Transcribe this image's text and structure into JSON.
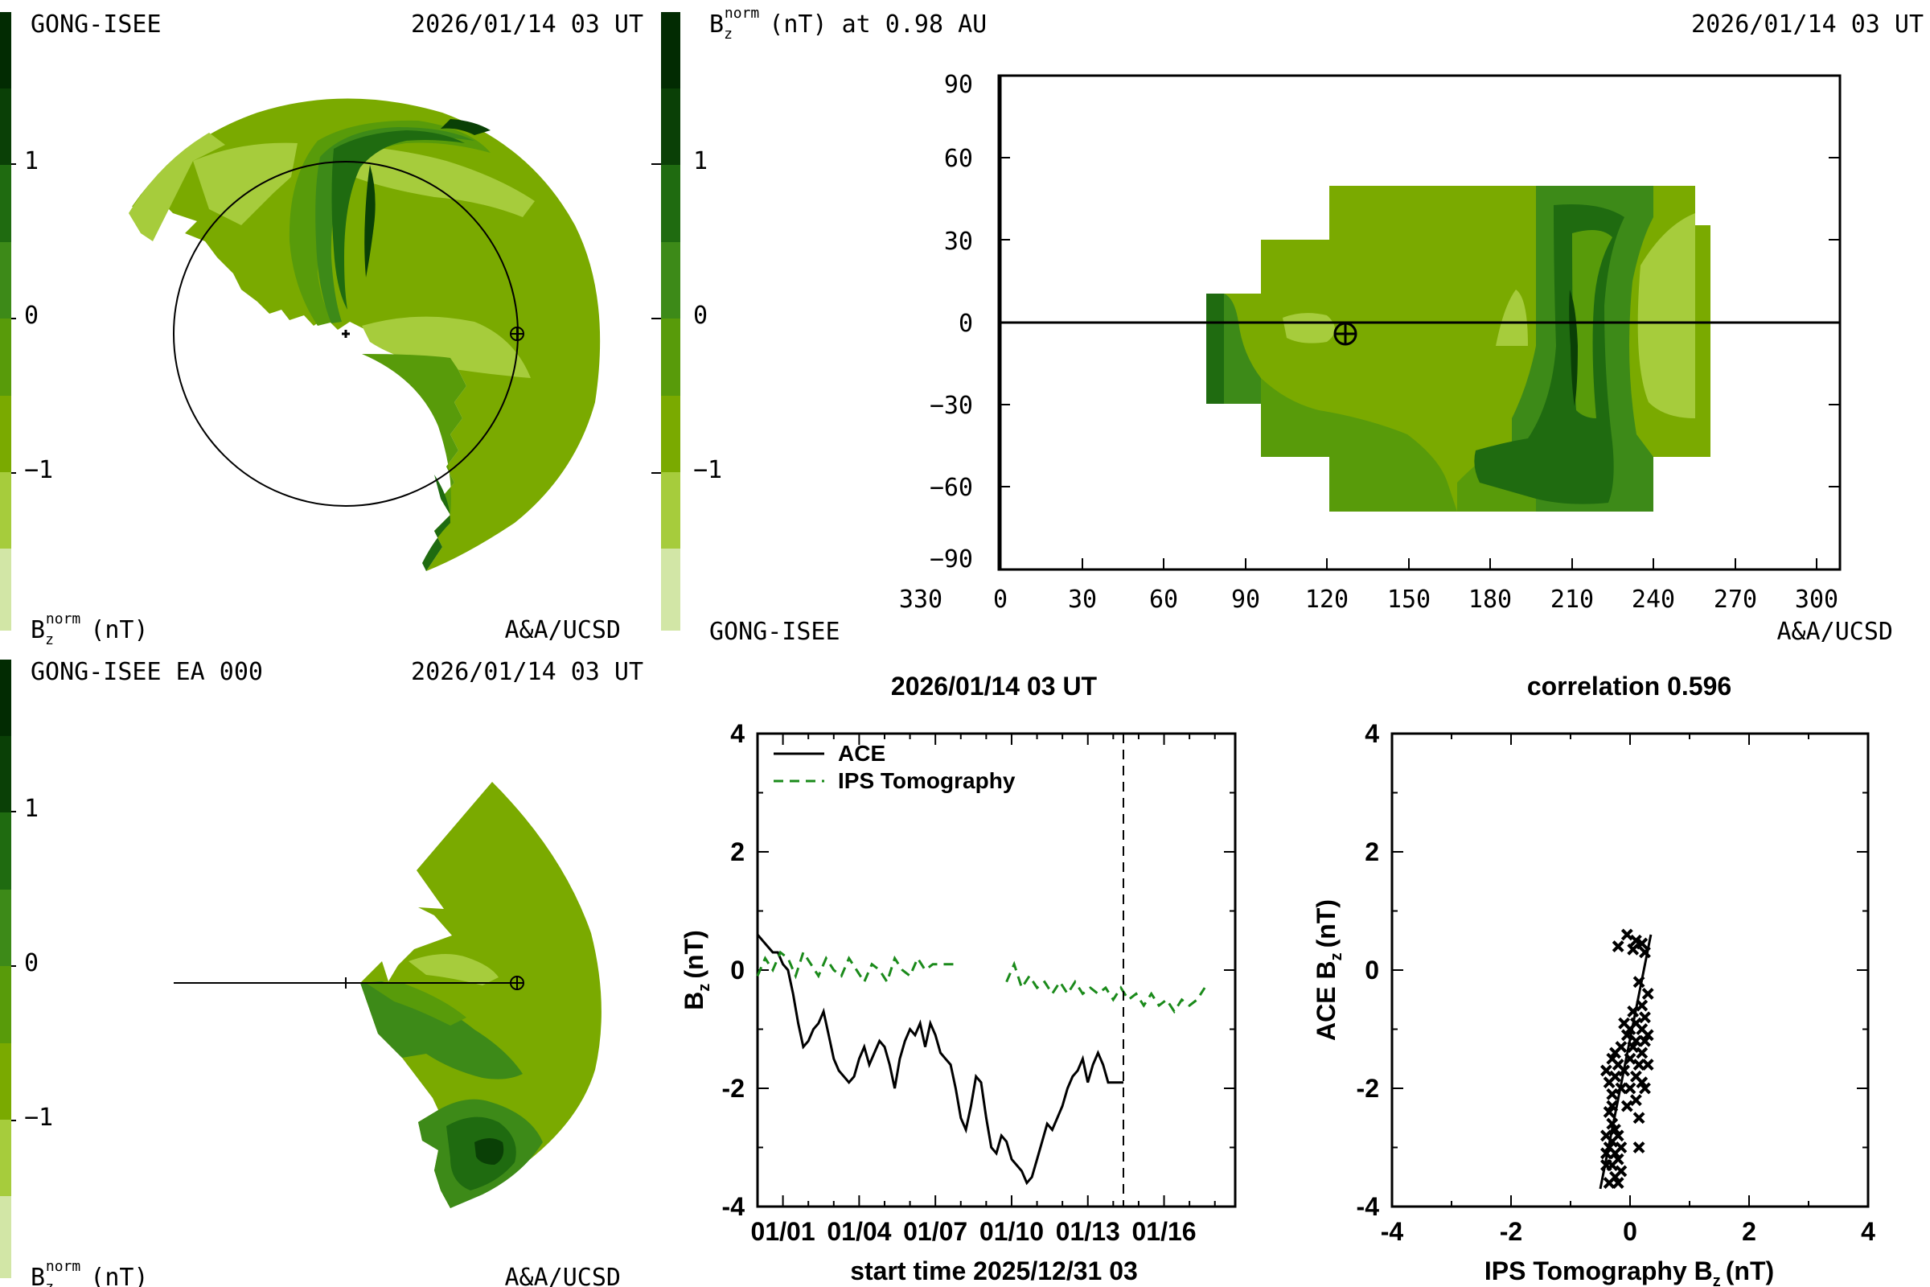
{
  "colors": {
    "c0": "#d2e6a6",
    "c1": "#a6cc3c",
    "c2": "#7aaa00",
    "c3": "#589b0a",
    "c4": "#3d8a18",
    "c5": "#1f6b10",
    "c6": "#0a4006",
    "c7": "#022b02",
    "ace_line": "#000000",
    "ips_line": "#1a8a1a"
  },
  "colorbar": {
    "ticks": [
      "1",
      "0",
      "−1"
    ],
    "label_main": "B",
    "label_sub": "z",
    "label_sup": "norm",
    "label_unit": "(nT)"
  },
  "panel_ecliptic": {
    "source": "GONG-ISEE",
    "timestamp": "2026/01/14 03 UT",
    "credit": "A&A/UCSD"
  },
  "panel_meridional": {
    "source": "GONG-ISEE EA 000",
    "timestamp": "2026/01/14 03 UT",
    "credit": "A&A/UCSD"
  },
  "panel_map": {
    "title_prefix": "B",
    "title_sub": "z",
    "title_sup": "norm",
    "title_rest": "(nT) at 0.98 AU",
    "timestamp": "2026/01/14 03 UT",
    "source": "GONG-ISEE",
    "credit": "A&A/UCSD",
    "x_ticks": [
      "330",
      "0",
      "30",
      "60",
      "90",
      "120",
      "150",
      "180",
      "210",
      "240",
      "270",
      "300"
    ],
    "y_ticks": [
      "90",
      "60",
      "30",
      "0",
      "−30",
      "−60",
      "−90"
    ]
  },
  "chart_data": [
    {
      "type": "line",
      "title": "2026/01/14 03 UT",
      "xlabel": "start time 2025/12/31 03",
      "ylabel_main": "B",
      "ylabel_sub": "z",
      "ylabel_unit": "(nT)",
      "x_tick_labels": [
        "01/01",
        "01/04",
        "01/07",
        "01/10",
        "01/13",
        "01/16"
      ],
      "x_tick_days": [
        1,
        4,
        7,
        10,
        13,
        16
      ],
      "xlim": [
        0,
        18.8
      ],
      "ylim": [
        -4,
        4
      ],
      "y_ticks": [
        "4",
        "2",
        "0",
        "-2",
        "-4"
      ],
      "now_marker_day": 14.4,
      "legend": [
        "ACE",
        "IPS Tomography"
      ],
      "series": [
        {
          "name": "ACE",
          "x": [
            0.0,
            0.2,
            0.4,
            0.6,
            0.8,
            1.0,
            1.2,
            1.4,
            1.6,
            1.8,
            2.0,
            2.2,
            2.4,
            2.6,
            2.8,
            3.0,
            3.2,
            3.4,
            3.6,
            3.8,
            4.0,
            4.2,
            4.4,
            4.6,
            4.8,
            5.0,
            5.2,
            5.4,
            5.6,
            5.8,
            6.0,
            6.2,
            6.4,
            6.6,
            6.8,
            7.0,
            7.2,
            7.4,
            7.6,
            7.8,
            8.0,
            8.2,
            8.4,
            8.6,
            8.8,
            9.0,
            9.2,
            9.4,
            9.6,
            9.8,
            10.0,
            10.2,
            10.4,
            10.6,
            10.8,
            11.0,
            11.2,
            11.4,
            11.6,
            11.8,
            12.0,
            12.2,
            12.4,
            12.6,
            12.8,
            13.0,
            13.2,
            13.4,
            13.6,
            13.8,
            14.0,
            14.2,
            14.4
          ],
          "values": [
            0.6,
            0.5,
            0.4,
            0.3,
            0.3,
            0.1,
            0.0,
            -0.4,
            -0.9,
            -1.3,
            -1.2,
            -1.0,
            -0.9,
            -0.7,
            -1.1,
            -1.5,
            -1.7,
            -1.8,
            -1.9,
            -1.8,
            -1.5,
            -1.3,
            -1.6,
            -1.4,
            -1.2,
            -1.3,
            -1.6,
            -2.0,
            -1.5,
            -1.2,
            -1.0,
            -1.1,
            -0.9,
            -1.3,
            -0.9,
            -1.1,
            -1.4,
            -1.5,
            -1.6,
            -2.0,
            -2.5,
            -2.7,
            -2.3,
            -1.8,
            -1.9,
            -2.5,
            -3.0,
            -3.1,
            -2.8,
            -2.9,
            -3.2,
            -3.3,
            -3.4,
            -3.6,
            -3.5,
            -3.2,
            -2.9,
            -2.6,
            -2.7,
            -2.5,
            -2.3,
            -2.0,
            -1.8,
            -1.7,
            -1.5,
            -1.9,
            -1.6,
            -1.4,
            -1.6,
            -1.9,
            -1.9,
            -1.9,
            -1.9
          ]
        },
        {
          "name": "IPS Tomography",
          "x": [
            0.0,
            0.3,
            0.6,
            0.9,
            1.2,
            1.5,
            1.8,
            2.1,
            2.4,
            2.7,
            3.0,
            3.3,
            3.6,
            3.9,
            4.2,
            4.5,
            4.8,
            5.1,
            5.4,
            5.7,
            6.0,
            6.3,
            6.6,
            6.9,
            7.2,
            7.5,
            7.8
          ],
          "values": [
            -0.1,
            0.2,
            0.0,
            0.3,
            0.2,
            -0.1,
            0.3,
            0.1,
            -0.1,
            0.2,
            0.0,
            -0.1,
            0.2,
            0.0,
            -0.2,
            0.1,
            0.0,
            -0.2,
            0.2,
            0.0,
            -0.1,
            0.2,
            0.0,
            0.1,
            0.1,
            0.1,
            0.1
          ]
        },
        {
          "name": "IPS Tomography (segment 2)",
          "x": [
            9.8,
            10.1,
            10.4,
            10.7,
            11.0,
            11.3,
            11.6,
            11.9,
            12.2,
            12.5,
            12.8,
            13.1,
            13.4,
            13.7,
            14.0,
            14.3,
            14.6,
            14.9,
            15.2,
            15.5,
            15.8,
            16.1,
            16.4,
            16.7,
            17.0,
            17.3,
            17.6
          ],
          "values": [
            -0.2,
            0.1,
            -0.3,
            -0.1,
            -0.3,
            -0.2,
            -0.4,
            -0.2,
            -0.4,
            -0.2,
            -0.4,
            -0.3,
            -0.4,
            -0.3,
            -0.5,
            -0.3,
            -0.5,
            -0.4,
            -0.6,
            -0.4,
            -0.6,
            -0.5,
            -0.7,
            -0.5,
            -0.6,
            -0.5,
            -0.3
          ]
        }
      ]
    },
    {
      "type": "scatter",
      "title": "correlation 0.596",
      "xlabel": "IPS Tomography B",
      "xlabel_sub": "z",
      "xlabel_unit": "(nT)",
      "ylabel": "ACE B",
      "ylabel_sub": "z",
      "ylabel_unit": "(nT)",
      "xlim": [
        -4,
        4
      ],
      "ylim": [
        -4,
        4
      ],
      "x_ticks": [
        "-4",
        "-2",
        "0",
        "2",
        "4"
      ],
      "y_ticks": [
        "4",
        "2",
        "0",
        "-2",
        "-4"
      ],
      "fit_line": [
        [
          -0.5,
          -3.7
        ],
        [
          0.35,
          0.6
        ]
      ],
      "points": [
        [
          -0.05,
          0.6
        ],
        [
          0.1,
          0.5
        ],
        [
          0.2,
          0.45
        ],
        [
          0.25,
          0.3
        ],
        [
          -0.2,
          0.4
        ],
        [
          0.05,
          0.35
        ],
        [
          0.15,
          -0.2
        ],
        [
          0.3,
          -0.4
        ],
        [
          0.2,
          -0.6
        ],
        [
          0.05,
          -0.7
        ],
        [
          0.25,
          -0.8
        ],
        [
          0.1,
          -0.9
        ],
        [
          -0.1,
          -0.9
        ],
        [
          0.0,
          -1.0
        ],
        [
          0.2,
          -1.0
        ],
        [
          0.3,
          -1.1
        ],
        [
          -0.05,
          -1.1
        ],
        [
          0.1,
          -1.2
        ],
        [
          0.25,
          -1.2
        ],
        [
          -0.15,
          -1.3
        ],
        [
          0.05,
          -1.3
        ],
        [
          0.2,
          -1.4
        ],
        [
          -0.25,
          -1.4
        ],
        [
          0.0,
          -1.5
        ],
        [
          -0.3,
          -1.5
        ],
        [
          0.15,
          -1.6
        ],
        [
          -0.2,
          -1.6
        ],
        [
          0.3,
          -1.6
        ],
        [
          -0.4,
          -1.7
        ],
        [
          -0.1,
          -1.7
        ],
        [
          0.1,
          -1.8
        ],
        [
          -0.25,
          -1.8
        ],
        [
          0.2,
          -1.9
        ],
        [
          -0.35,
          -1.9
        ],
        [
          0.0,
          -2.0
        ],
        [
          -0.15,
          -2.0
        ],
        [
          0.25,
          -2.0
        ],
        [
          -0.3,
          -2.1
        ],
        [
          0.1,
          -2.2
        ],
        [
          -0.05,
          -2.3
        ],
        [
          -0.35,
          -2.4
        ],
        [
          0.15,
          -2.5
        ],
        [
          -0.3,
          -2.6
        ],
        [
          -0.25,
          -2.7
        ],
        [
          -0.4,
          -2.8
        ],
        [
          -0.2,
          -2.8
        ],
        [
          -0.3,
          -2.9
        ],
        [
          -0.15,
          -3.0
        ],
        [
          -0.35,
          -3.0
        ],
        [
          -0.25,
          -3.1
        ],
        [
          -0.4,
          -3.1
        ],
        [
          0.15,
          -3.0
        ],
        [
          -0.2,
          -3.2
        ],
        [
          -0.3,
          -3.3
        ],
        [
          -0.4,
          -3.3
        ],
        [
          -0.15,
          -3.4
        ],
        [
          -0.25,
          -3.5
        ],
        [
          -0.35,
          -3.6
        ],
        [
          -0.2,
          -3.6
        ],
        [
          -0.3,
          -2.3
        ]
      ]
    }
  ]
}
